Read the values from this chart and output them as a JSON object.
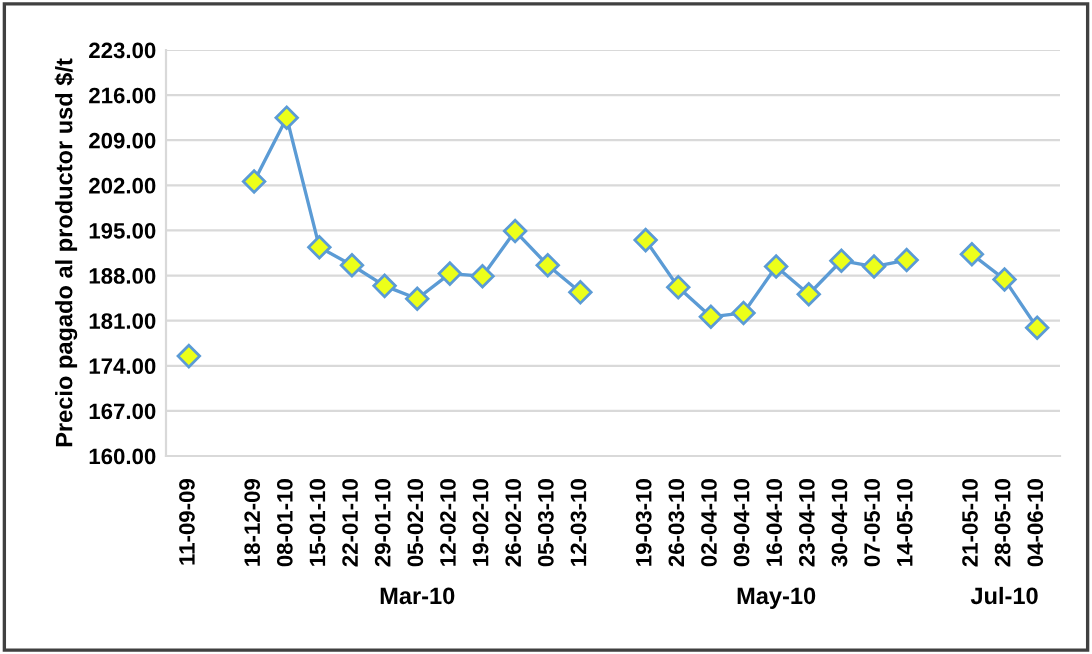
{
  "chart_data": {
    "type": "line",
    "ylabel": "Precio pagado al productor usd $/t",
    "categories": [
      "11-09-09",
      null,
      "18-12-09",
      "08-01-10",
      "15-01-10",
      "22-01-10",
      "29-01-10",
      "05-02-10",
      "12-02-10",
      "19-02-10",
      "26-02-10",
      "05-03-10",
      "12-03-10",
      null,
      "19-03-10",
      "26-03-10",
      "02-04-10",
      "09-04-10",
      "16-04-10",
      "23-04-10",
      "30-04-10",
      "07-05-10",
      "14-05-10",
      null,
      "21-05-10",
      "28-05-10",
      "04-06-10"
    ],
    "series": [
      {
        "color": "#5b9bd5",
        "values": [
          175.5,
          null,
          202.6,
          212.5,
          192.4,
          189.6,
          186.4,
          184.4,
          188.3,
          187.9,
          194.9,
          189.6,
          185.4,
          null,
          193.5,
          186.2,
          181.6,
          182.2,
          189.4,
          185.1,
          190.3,
          189.4,
          190.4,
          null,
          191.3,
          187.4,
          179.9
        ]
      }
    ],
    "ylim": [
      160,
      223
    ],
    "yticks": [
      {
        "value": 160,
        "label": "160.00"
      },
      {
        "value": 167,
        "label": "167.00"
      },
      {
        "value": 174,
        "label": "174.00"
      },
      {
        "value": 181,
        "label": "181.00"
      },
      {
        "value": 188,
        "label": "188.00"
      },
      {
        "value": 195,
        "label": "195.00"
      },
      {
        "value": 202,
        "label": "202.00"
      },
      {
        "value": 209,
        "label": "209.00"
      },
      {
        "value": 216,
        "label": "216.00"
      },
      {
        "value": 223,
        "label": "223.00"
      }
    ],
    "grid": "y",
    "marker": "diamond",
    "line_style": "solid",
    "annotations": [
      "Mar-10",
      "May-10",
      "Jul-10"
    ]
  }
}
